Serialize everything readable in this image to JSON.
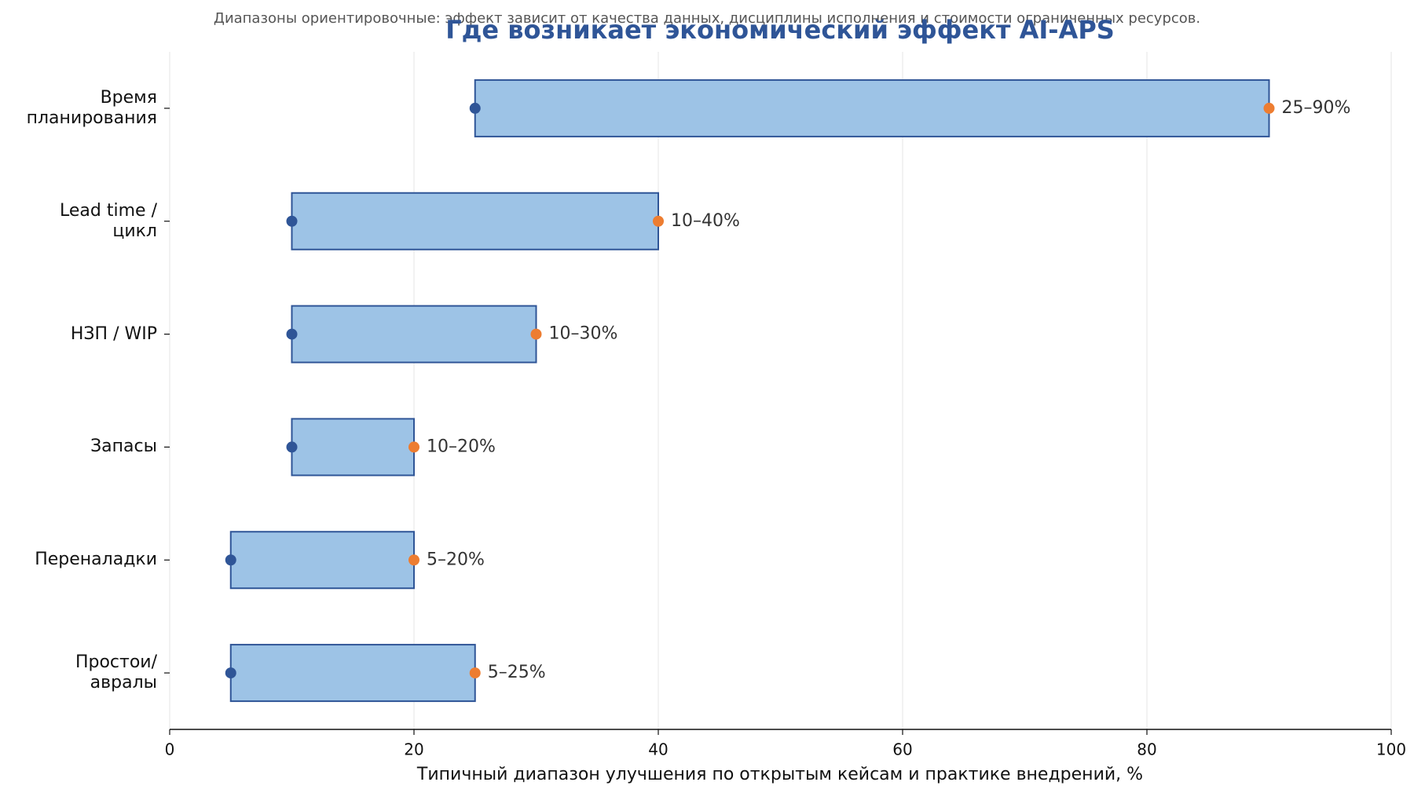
{
  "chart_data": {
    "type": "range-bar",
    "title": "Где возникает экономический эффект AI-APS",
    "subtitle": "Диапазоны ориентировочные: эффект зависит от качества данных, дисциплины исполнения и стоимости ограниченных ресурсов.",
    "x_label": "Типичный диапазон улучшения по открытым кейсам и практике внедрений, %",
    "categories": [
      "Время\nпланирования",
      "Lead time /\nцикл",
      "НЗП / WIP",
      "Запасы",
      "Переналадки",
      "Простои/\nавралы"
    ],
    "low": [
      25,
      10,
      10,
      10,
      5,
      5
    ],
    "high": [
      90,
      40,
      30,
      20,
      20,
      25
    ],
    "value_labels": [
      "25–90%",
      "10–40%",
      "10–30%",
      "10–20%",
      "5–20%",
      "5–25%"
    ],
    "bar_color": "#9dc3e6",
    "edge_color": "#2f5597",
    "low_color": "#2f5597",
    "high_color": "#ed7d31",
    "xlim": [
      0,
      100
    ],
    "xticks": [
      0,
      20,
      40,
      60,
      80,
      100
    ],
    "grid": true
  }
}
